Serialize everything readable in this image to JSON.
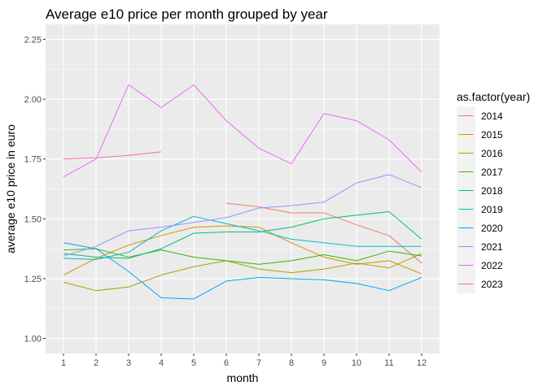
{
  "chart_data": {
    "type": "line",
    "title": "Average e10 price per month grouped by year",
    "xlabel": "month",
    "ylabel": "average e10 price in euro",
    "xlim": [
      1,
      12
    ],
    "ylim": [
      1.0,
      2.25
    ],
    "x_ticks": [
      "1",
      "2",
      "3",
      "4",
      "5",
      "6",
      "7",
      "8",
      "9",
      "10",
      "11",
      "12"
    ],
    "y_ticks": [
      "1.00",
      "1.25",
      "1.50",
      "1.75",
      "2.00",
      "2.25"
    ],
    "grid": true,
    "legend": {
      "title": "as.factor(year)",
      "position": "right"
    },
    "series": [
      {
        "name": "2014",
        "color": "#F8766D",
        "x": [
          6,
          7,
          8,
          9,
          10,
          11,
          12
        ],
        "values": [
          1.565,
          1.55,
          1.525,
          1.525,
          1.475,
          1.43,
          1.315
        ]
      },
      {
        "name": "2015",
        "color": "#D89000",
        "x": [
          1,
          2,
          3,
          4,
          5,
          6,
          7,
          8,
          9,
          10,
          11,
          12
        ],
        "values": [
          1.265,
          1.335,
          1.39,
          1.43,
          1.465,
          1.47,
          1.465,
          1.4,
          1.34,
          1.31,
          1.325,
          1.27
        ]
      },
      {
        "name": "2016",
        "color": "#A3A500",
        "x": [
          1,
          2,
          3,
          4,
          5,
          6,
          7,
          8,
          9,
          10,
          11,
          12
        ],
        "values": [
          1.235,
          1.2,
          1.215,
          1.265,
          1.3,
          1.325,
          1.29,
          1.275,
          1.29,
          1.315,
          1.295,
          1.355
        ]
      },
      {
        "name": "2017",
        "color": "#39B600",
        "x": [
          1,
          2,
          3,
          4,
          5,
          6,
          7,
          8,
          9,
          10,
          11,
          12
        ],
        "values": [
          1.37,
          1.375,
          1.34,
          1.37,
          1.34,
          1.325,
          1.31,
          1.325,
          1.35,
          1.325,
          1.365,
          1.345
        ]
      },
      {
        "name": "2018",
        "color": "#00BF7D",
        "x": [
          1,
          2,
          3,
          4,
          5,
          6,
          7,
          8,
          9,
          10,
          11,
          12
        ],
        "values": [
          1.355,
          1.34,
          1.335,
          1.375,
          1.44,
          1.445,
          1.445,
          1.465,
          1.5,
          1.515,
          1.53,
          1.415
        ]
      },
      {
        "name": "2019",
        "color": "#00BFC4",
        "x": [
          1,
          2,
          3,
          4,
          5,
          6,
          7,
          8,
          9,
          10,
          11,
          12
        ],
        "values": [
          1.335,
          1.33,
          1.36,
          1.45,
          1.51,
          1.48,
          1.45,
          1.415,
          1.4,
          1.385,
          1.385,
          1.385
        ]
      },
      {
        "name": "2020",
        "color": "#00A5FF",
        "x": [
          1,
          2,
          3,
          4,
          5,
          6,
          7,
          8,
          9,
          10,
          11,
          12
        ],
        "values": [
          1.4,
          1.375,
          1.28,
          1.17,
          1.165,
          1.24,
          1.255,
          1.25,
          1.245,
          1.23,
          1.2,
          1.255
        ]
      },
      {
        "name": "2021",
        "color": "#9590FF",
        "x": [
          1,
          2,
          3,
          4,
          5,
          6,
          7,
          8,
          9,
          10,
          11,
          12
        ],
        "values": [
          1.345,
          1.385,
          1.45,
          1.465,
          1.485,
          1.505,
          1.545,
          1.555,
          1.57,
          1.65,
          1.685,
          1.63
        ]
      },
      {
        "name": "2022",
        "color": "#E76BF3",
        "x": [
          1,
          2,
          3,
          4,
          5,
          6,
          7,
          8,
          9,
          10,
          11,
          12
        ],
        "values": [
          1.675,
          1.75,
          2.06,
          1.965,
          2.06,
          1.91,
          1.795,
          1.73,
          1.94,
          1.91,
          1.83,
          1.695
        ]
      },
      {
        "name": "2023",
        "color": "#FF62BC",
        "x": [
          1,
          2,
          3,
          4
        ],
        "values": [
          1.75,
          1.755,
          1.765,
          1.78
        ]
      }
    ]
  }
}
